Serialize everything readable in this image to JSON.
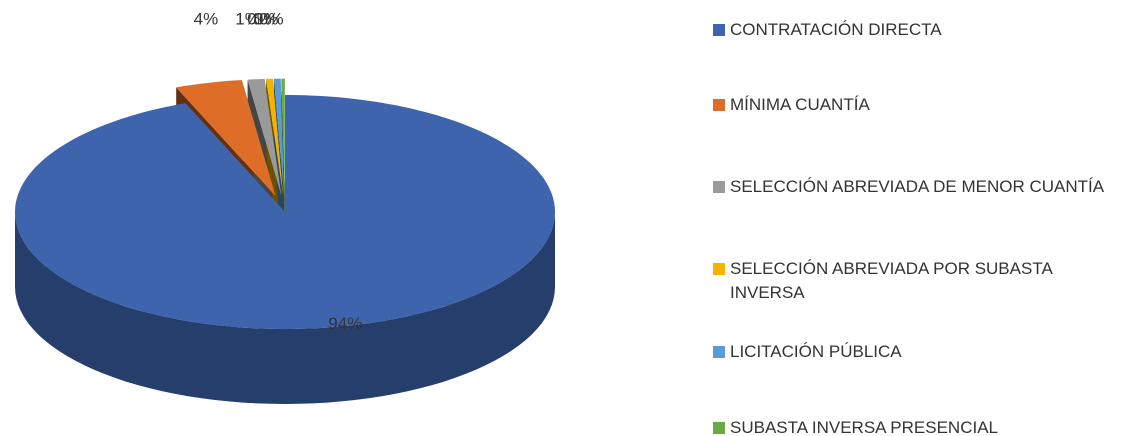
{
  "chart_data": {
    "type": "pie",
    "categories": [
      "CONTRATACIÓN DIRECTA",
      "MÍNIMA CUANTÍA",
      "SELECCIÓN ABREVIADA DE MENOR CUANTÍA",
      "SELECCIÓN ABREVIADA POR SUBASTA INVERSA",
      "LICITACIÓN PÚBLICA",
      "SUBASTA INVERSA PRESENCIAL"
    ],
    "values": [
      94,
      4,
      1,
      0.4,
      0.4,
      0.2
    ],
    "value_labels": [
      "94%",
      "4%",
      "1%",
      "0%",
      "0%",
      "0%"
    ],
    "colors": [
      "#3e64ae",
      "#dd6d27",
      "#9a9a9a",
      "#f2b400",
      "#5a9bd5",
      "#6aaa44"
    ],
    "legend": "right"
  }
}
